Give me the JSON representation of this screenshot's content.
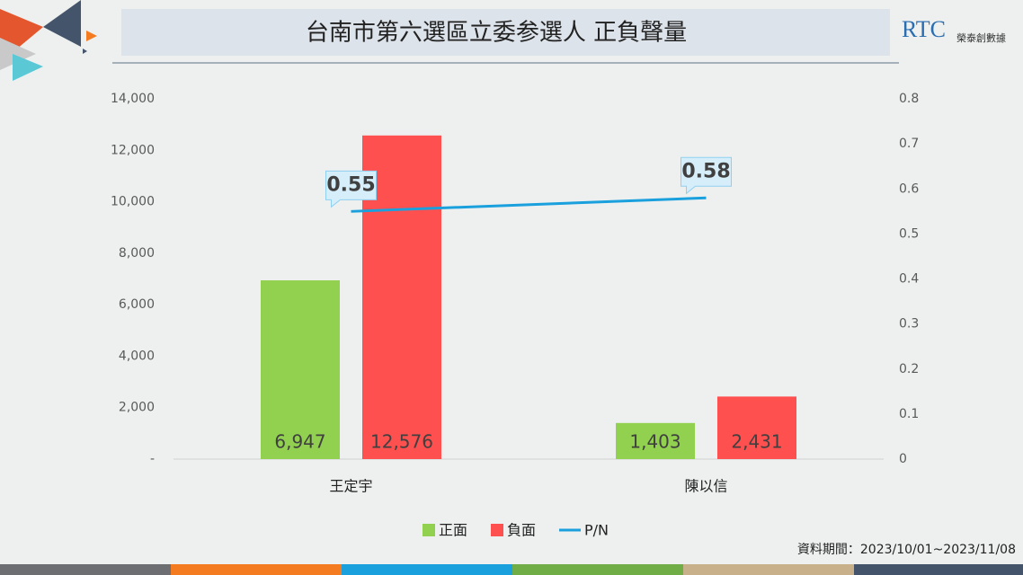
{
  "chart_data": {
    "type": "bar",
    "title": "台南市第六選區立委参選人 正負聲量",
    "logo": "RTC",
    "logo_subtitle": "榮泰創數據",
    "footnote": "資料期間：2023/10/01~2023/11/08",
    "categories": [
      "王定宇",
      "陳以信"
    ],
    "series": [
      {
        "name": "正面",
        "color": "#92d050",
        "values": [
          6947,
          1403
        ],
        "value_labels": [
          "6,947",
          "1,403"
        ]
      },
      {
        "name": "負面",
        "color": "#ff5050",
        "values": [
          12576,
          2431
        ],
        "value_labels": [
          "12,576",
          "2,431"
        ]
      },
      {
        "name": "P/N",
        "type": "line",
        "axis": "y2",
        "color": "#1aa0dc",
        "values": [
          0.55,
          0.58
        ]
      }
    ],
    "ylim": [
      0,
      14000
    ],
    "yticks": [
      {
        "value": 0,
        "label": "-"
      },
      {
        "value": 2000,
        "label": "2,000"
      },
      {
        "value": 4000,
        "label": "4,000"
      },
      {
        "value": 6000,
        "label": "6,000"
      },
      {
        "value": 8000,
        "label": "8,000"
      },
      {
        "value": 10000,
        "label": "10,000"
      },
      {
        "value": 12000,
        "label": "12,000"
      },
      {
        "value": 14000,
        "label": "14,000"
      }
    ],
    "y2lim": [
      0,
      0.8
    ],
    "y2ticks": [
      0,
      0.1,
      0.2,
      0.3,
      0.4,
      0.5,
      0.6,
      0.7,
      0.8
    ],
    "grid": false
  }
}
